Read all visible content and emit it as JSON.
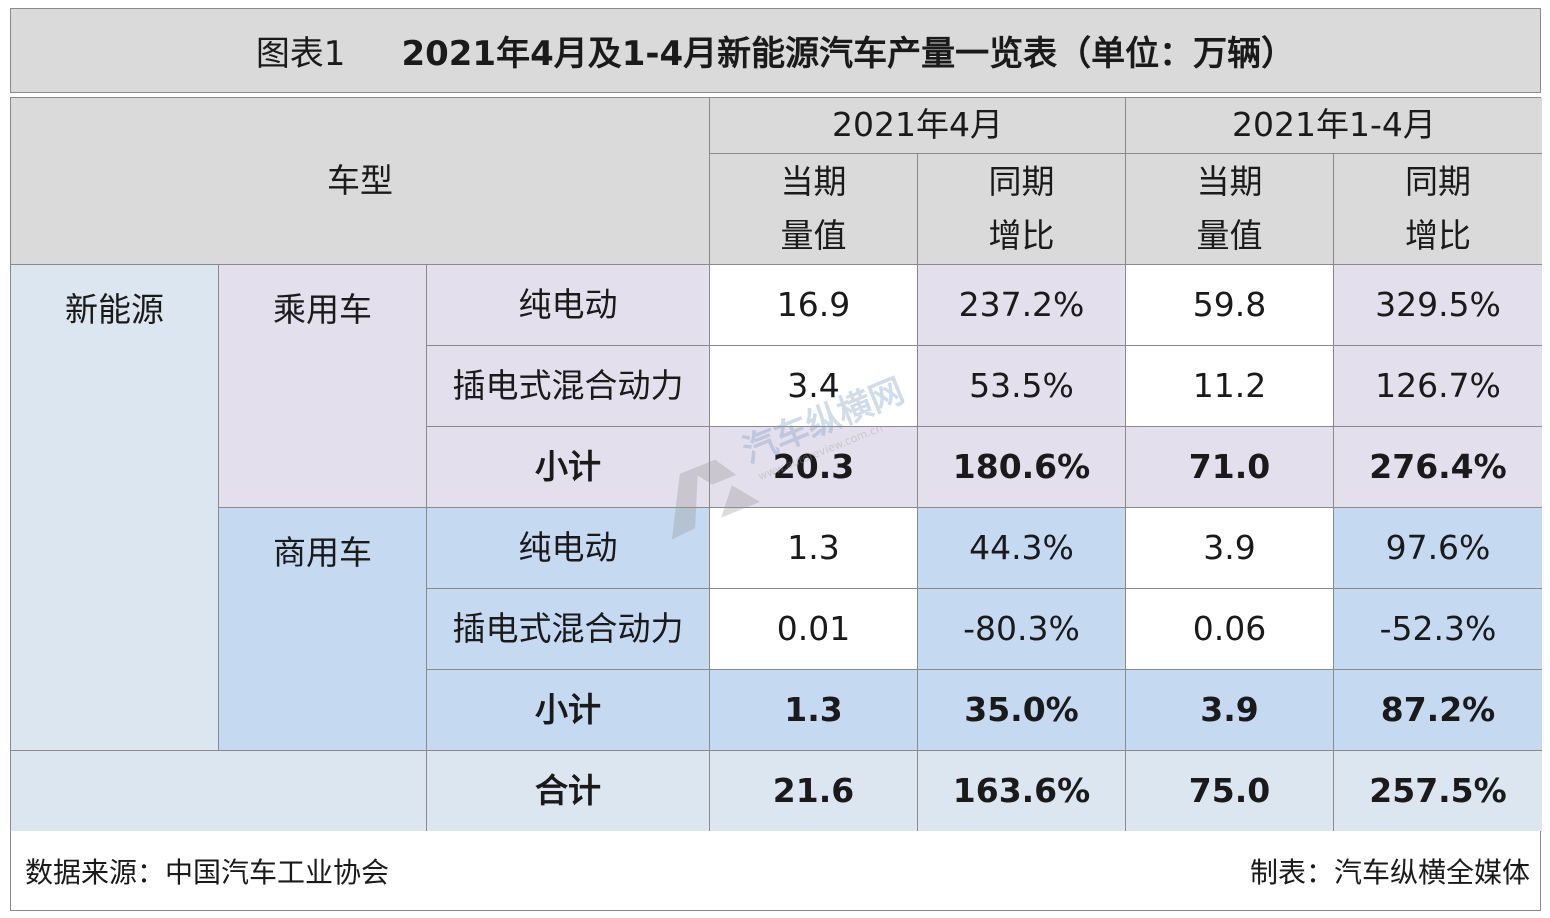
{
  "title": {
    "label": "图表1",
    "text": "2021年4月及1-4月新能源汽车产量一览表（单位：万辆）"
  },
  "header": {
    "vehicle_type": "车型",
    "period_month": "2021年4月",
    "period_ytd": "2021年1-4月",
    "current_value": "当期\n量值",
    "yoy_growth": "同期\n增比"
  },
  "labels": {
    "new_energy": "新能源",
    "passenger": "乘用车",
    "commercial": "商用车",
    "bev": "纯电动",
    "phev": "插电式混合动力",
    "subtotal": "小计",
    "total": "合计"
  },
  "chart_data": {
    "type": "table",
    "title": "2021年4月及1-4月新能源汽车产量一览表（单位：万辆）",
    "columns": [
      "当期量值（2021年4月）",
      "同期增比（2021年4月）",
      "当期量值（2021年1-4月）",
      "同期增比（2021年1-4月）"
    ],
    "rows": [
      {
        "group": "乘用车",
        "name": "纯电动",
        "values": [
          "16.9",
          "237.2%",
          "59.8",
          "329.5%"
        ]
      },
      {
        "group": "乘用车",
        "name": "插电式混合动力",
        "values": [
          "3.4",
          "53.5%",
          "11.2",
          "126.7%"
        ]
      },
      {
        "group": "乘用车",
        "name": "小计",
        "values": [
          "20.3",
          "180.6%",
          "71.0",
          "276.4%"
        ]
      },
      {
        "group": "商用车",
        "name": "纯电动",
        "values": [
          "1.3",
          "44.3%",
          "3.9",
          "97.6%"
        ]
      },
      {
        "group": "商用车",
        "name": "插电式混合动力",
        "values": [
          "0.01",
          "-80.3%",
          "0.06",
          "-52.3%"
        ]
      },
      {
        "group": "商用车",
        "name": "小计",
        "values": [
          "1.3",
          "35.0%",
          "3.9",
          "87.2%"
        ]
      },
      {
        "group": "新能源",
        "name": "合计",
        "values": [
          "21.6",
          "163.6%",
          "75.0",
          "257.5%"
        ]
      }
    ]
  },
  "footer": {
    "source": "数据来源：中国汽车工业协会",
    "maker": "制表：汽车纵横全媒体"
  },
  "watermark": {
    "text": "汽车纵横网",
    "domain": "www.autoreview.com.cn"
  },
  "colors": {
    "header": "#dadada",
    "new_energy": "#dce6f1",
    "passenger": "#e4dfec",
    "commercial": "#c5d9f1",
    "border": "#8a8a8a"
  }
}
